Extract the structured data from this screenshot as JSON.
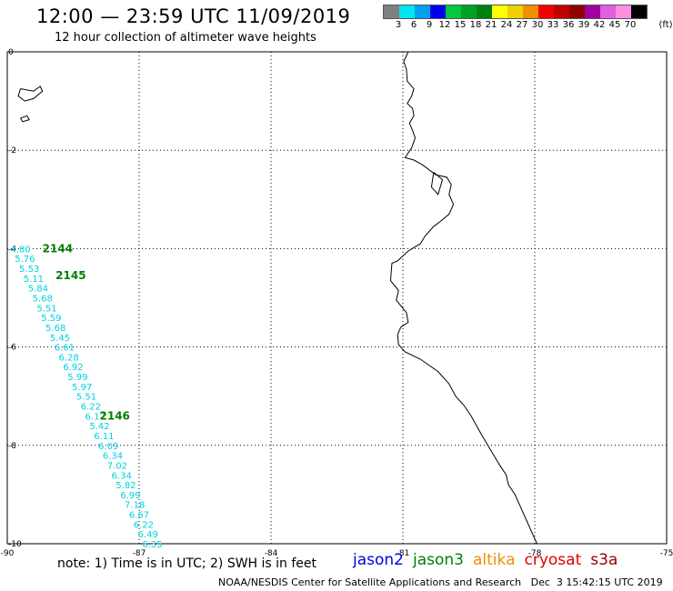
{
  "header": {
    "title": "12:00 — 23:59 UTC 11/09/2019",
    "subtitle": "12 hour collection of altimeter wave heights"
  },
  "scale": {
    "colors": [
      "#808080",
      "#00e5f0",
      "#00a0f0",
      "#0000f0",
      "#00c840",
      "#00a028",
      "#008010",
      "#ffff00",
      "#f0d000",
      "#f09000",
      "#f00000",
      "#c00000",
      "#900000",
      "#a000a0",
      "#e060e0",
      "#ff90e0",
      "#000000"
    ],
    "labels": [
      "3",
      "6",
      "9",
      "12",
      "15",
      "18",
      "21",
      "24",
      "27",
      "30",
      "33",
      "36",
      "39",
      "42",
      "45",
      "70"
    ],
    "unit": "(ft)"
  },
  "map": {
    "lon_range": [
      -90,
      -75
    ],
    "lat_range": [
      -10,
      0
    ],
    "x_ticks": [
      "-90",
      "-87",
      "-84",
      "-81",
      "-78",
      "-75"
    ],
    "y_ticks": [
      "0",
      "-2",
      "-4",
      "-6",
      "-8",
      "-10"
    ],
    "track_color": "#00d0e0",
    "time_color": "#008000",
    "coast_color": "#000000",
    "measurements": [
      {
        "lon": -89.93,
        "lat": -4.0,
        "swh": "4.80"
      },
      {
        "lon": -89.83,
        "lat": -4.2,
        "swh": "5.76"
      },
      {
        "lon": -89.73,
        "lat": -4.4,
        "swh": "5.53"
      },
      {
        "lon": -89.63,
        "lat": -4.6,
        "swh": "5.11"
      },
      {
        "lon": -89.53,
        "lat": -4.8,
        "swh": "5.84"
      },
      {
        "lon": -89.43,
        "lat": -5.0,
        "swh": "5.68"
      },
      {
        "lon": -89.33,
        "lat": -5.2,
        "swh": "5.51"
      },
      {
        "lon": -89.23,
        "lat": -5.4,
        "swh": "5.59"
      },
      {
        "lon": -89.13,
        "lat": -5.6,
        "swh": "5.68"
      },
      {
        "lon": -89.03,
        "lat": -5.8,
        "swh": "5.45"
      },
      {
        "lon": -88.93,
        "lat": -6.0,
        "swh": "6.61"
      },
      {
        "lon": -88.83,
        "lat": -6.2,
        "swh": "6.28"
      },
      {
        "lon": -88.73,
        "lat": -6.4,
        "swh": "6.92"
      },
      {
        "lon": -88.63,
        "lat": -6.6,
        "swh": "5.99"
      },
      {
        "lon": -88.53,
        "lat": -6.8,
        "swh": "5.97"
      },
      {
        "lon": -88.43,
        "lat": -7.0,
        "swh": "5.51"
      },
      {
        "lon": -88.33,
        "lat": -7.2,
        "swh": "6.22"
      },
      {
        "lon": -88.23,
        "lat": -7.4,
        "swh": "6.17"
      },
      {
        "lon": -88.13,
        "lat": -7.6,
        "swh": "5.42"
      },
      {
        "lon": -88.03,
        "lat": -7.8,
        "swh": "6.11"
      },
      {
        "lon": -87.93,
        "lat": -8.0,
        "swh": "6.09"
      },
      {
        "lon": -87.83,
        "lat": -8.2,
        "swh": "6.34"
      },
      {
        "lon": -87.73,
        "lat": -8.4,
        "swh": "7.02"
      },
      {
        "lon": -87.63,
        "lat": -8.6,
        "swh": "6.34"
      },
      {
        "lon": -87.53,
        "lat": -8.8,
        "swh": "5.82"
      },
      {
        "lon": -87.43,
        "lat": -9.0,
        "swh": "6.99"
      },
      {
        "lon": -87.33,
        "lat": -9.2,
        "swh": "7.18"
      },
      {
        "lon": -87.23,
        "lat": -9.4,
        "swh": "6.67"
      },
      {
        "lon": -87.13,
        "lat": -9.6,
        "swh": "6.22"
      },
      {
        "lon": -87.03,
        "lat": -9.8,
        "swh": "6.49"
      },
      {
        "lon": -86.93,
        "lat": -10.0,
        "swh": "6.35"
      }
    ],
    "time_labels": [
      {
        "text": "2144",
        "lon": -89.2,
        "lat": -4.0
      },
      {
        "text": "2145",
        "lon": -88.9,
        "lat": -4.55
      },
      {
        "text": "2146",
        "lon": -87.9,
        "lat": -7.4
      }
    ],
    "coastline": [
      [
        -80.88,
        0.0
      ],
      [
        -80.98,
        -0.2
      ],
      [
        -80.92,
        -0.35
      ],
      [
        -80.9,
        -0.6
      ],
      [
        -80.75,
        -0.75
      ],
      [
        -80.8,
        -0.9
      ],
      [
        -80.9,
        -1.05
      ],
      [
        -80.78,
        -1.15
      ],
      [
        -80.75,
        -1.3
      ],
      [
        -80.85,
        -1.45
      ],
      [
        -80.78,
        -1.6
      ],
      [
        -80.72,
        -1.75
      ],
      [
        -80.8,
        -1.95
      ],
      [
        -80.95,
        -2.15
      ],
      [
        -80.75,
        -2.2
      ],
      [
        -80.55,
        -2.3
      ],
      [
        -80.25,
        -2.5
      ],
      [
        -80.0,
        -2.55
      ],
      [
        -79.9,
        -2.7
      ],
      [
        -79.95,
        -2.9
      ],
      [
        -79.85,
        -3.1
      ],
      [
        -79.95,
        -3.3
      ],
      [
        -80.15,
        -3.45
      ],
      [
        -80.3,
        -3.55
      ],
      [
        -80.5,
        -3.75
      ],
      [
        -80.6,
        -3.9
      ],
      [
        -80.88,
        -4.05
      ],
      [
        -81.12,
        -4.25
      ],
      [
        -81.25,
        -4.3
      ],
      [
        -81.28,
        -4.65
      ],
      [
        -81.1,
        -4.85
      ],
      [
        -81.15,
        -5.05
      ],
      [
        -80.92,
        -5.3
      ],
      [
        -80.88,
        -5.5
      ],
      [
        -81.05,
        -5.6
      ],
      [
        -81.12,
        -5.75
      ],
      [
        -81.1,
        -5.95
      ],
      [
        -80.95,
        -6.1
      ],
      [
        -80.6,
        -6.25
      ],
      [
        -80.2,
        -6.5
      ],
      [
        -79.95,
        -6.75
      ],
      [
        -79.8,
        -7.0
      ],
      [
        -79.6,
        -7.2
      ],
      [
        -79.45,
        -7.4
      ],
      [
        -79.2,
        -7.8
      ],
      [
        -79.0,
        -8.1
      ],
      [
        -78.8,
        -8.4
      ],
      [
        -78.65,
        -8.6
      ],
      [
        -78.6,
        -8.8
      ],
      [
        -78.45,
        -9.0
      ],
      [
        -78.35,
        -9.2
      ],
      [
        -78.25,
        -9.4
      ],
      [
        -78.15,
        -9.6
      ],
      [
        -78.05,
        -9.8
      ],
      [
        -77.95,
        -10.0
      ]
    ],
    "islands": [
      [
        [
          -89.7,
          -0.75
        ],
        [
          -89.4,
          -0.8
        ],
        [
          -89.25,
          -0.7
        ],
        [
          -89.2,
          -0.8
        ],
        [
          -89.4,
          -0.95
        ],
        [
          -89.6,
          -1.0
        ],
        [
          -89.75,
          -0.9
        ],
        [
          -89.7,
          -0.75
        ]
      ],
      [
        [
          -89.7,
          -1.35
        ],
        [
          -89.55,
          -1.3
        ],
        [
          -89.5,
          -1.38
        ],
        [
          -89.65,
          -1.42
        ],
        [
          -89.7,
          -1.35
        ]
      ],
      [
        [
          -80.3,
          -2.45
        ],
        [
          -80.1,
          -2.6
        ],
        [
          -80.2,
          -2.9
        ],
        [
          -80.35,
          -2.75
        ],
        [
          -80.3,
          -2.45
        ]
      ]
    ]
  },
  "note": "note: 1) Time is in UTC; 2) SWH is in feet",
  "satellites": [
    {
      "name": "jason2",
      "color": "#0000e0"
    },
    {
      "name": "jason3",
      "color": "#008000"
    },
    {
      "name": "altika",
      "color": "#f09000"
    },
    {
      "name": "cryosat",
      "color": "#e00000"
    },
    {
      "name": "s3a",
      "color": "#900000"
    }
  ],
  "footer": "NOAA/NESDIS Center for Satellite Applications and Research   Dec  3 15:42:15 UTC 2019"
}
